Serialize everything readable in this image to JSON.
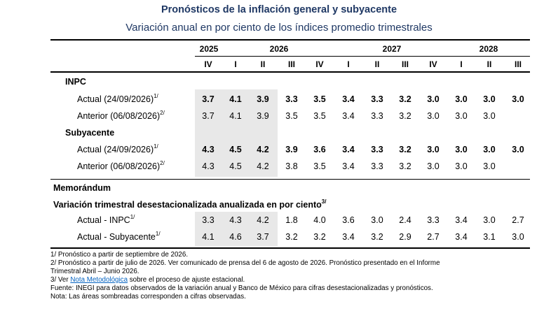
{
  "title": "Pronósticos de la inflación general y subyacente",
  "subtitle": "Variación anual en por ciento de los índices promedio trimestrales",
  "years": [
    "2025",
    "2026",
    "2027",
    "2028"
  ],
  "quarters": [
    "IV",
    "I",
    "II",
    "III",
    "IV",
    "I",
    "II",
    "III",
    "IV",
    "I",
    "II",
    "III"
  ],
  "sections": {
    "inpc": "INPC",
    "subyacente": "Subyacente",
    "memorandum": "Memorándum",
    "variacion_trimestral": "Variación trimestral desestacionalizada anualizada en por ciento",
    "variacion_trimestral_sup": "3/"
  },
  "rows": {
    "inpc_actual": {
      "label": "Actual (24/09/2026)",
      "sup": "1/",
      "bold": true,
      "values": [
        "3.7",
        "4.1",
        "3.9",
        "3.3",
        "3.5",
        "3.4",
        "3.3",
        "3.2",
        "3.0",
        "3.0",
        "3.0",
        "3.0"
      ]
    },
    "inpc_anterior": {
      "label": "Anterior (06/08/2026)",
      "sup": "2/",
      "bold": false,
      "values": [
        "3.7",
        "4.1",
        "3.9",
        "3.5",
        "3.5",
        "3.4",
        "3.3",
        "3.2",
        "3.0",
        "3.0",
        "3.0",
        ""
      ]
    },
    "sub_actual": {
      "label": "Actual (24/09/2026)",
      "sup": "1/",
      "bold": true,
      "values": [
        "4.3",
        "4.5",
        "4.2",
        "3.9",
        "3.6",
        "3.4",
        "3.3",
        "3.2",
        "3.0",
        "3.0",
        "3.0",
        "3.0"
      ]
    },
    "sub_anterior": {
      "label": "Anterior (06/08/2026)",
      "sup": "2/",
      "bold": false,
      "values": [
        "4.3",
        "4.5",
        "4.2",
        "3.8",
        "3.5",
        "3.4",
        "3.3",
        "3.2",
        "3.0",
        "3.0",
        "3.0",
        ""
      ]
    },
    "mem_inpc": {
      "label": "Actual - INPC",
      "sup": "1/",
      "bold": false,
      "values": [
        "3.3",
        "4.3",
        "4.2",
        "1.8",
        "4.0",
        "3.6",
        "3.0",
        "2.4",
        "3.3",
        "3.4",
        "3.0",
        "2.7"
      ]
    },
    "mem_sub": {
      "label": "Actual - Subyacente",
      "sup": "1/",
      "bold": false,
      "values": [
        "4.1",
        "4.6",
        "3.7",
        "3.2",
        "3.2",
        "3.4",
        "3.2",
        "2.9",
        "2.7",
        "3.4",
        "3.1",
        "3.0"
      ]
    }
  },
  "notes": {
    "n1": "1/ Pronóstico a partir de septiembre de 2026.",
    "n2a": "2/ Pronóstico a partir de julio de 2026. Ver comunicado de prensa del 6 de agosto de 2026. Pronóstico presentado en el Informe",
    "n2b": "Trimestral Abril – Junio 2026.",
    "n3_prefix": "3/ Ver ",
    "n3_link": "Nota Metodológica",
    "n3_suffix": " sobre el proceso de ajuste estacional.",
    "fuente": "Fuente: INEGI para datos observados de la variación anual y Banco de México para cifras desestacionalizadas y pronósticos.",
    "nota": "Nota: Las áreas sombreadas corresponden a cifras observadas."
  },
  "colors": {
    "title": "#1f3864",
    "shade": "#e8e8e8",
    "link": "#0563c1"
  }
}
